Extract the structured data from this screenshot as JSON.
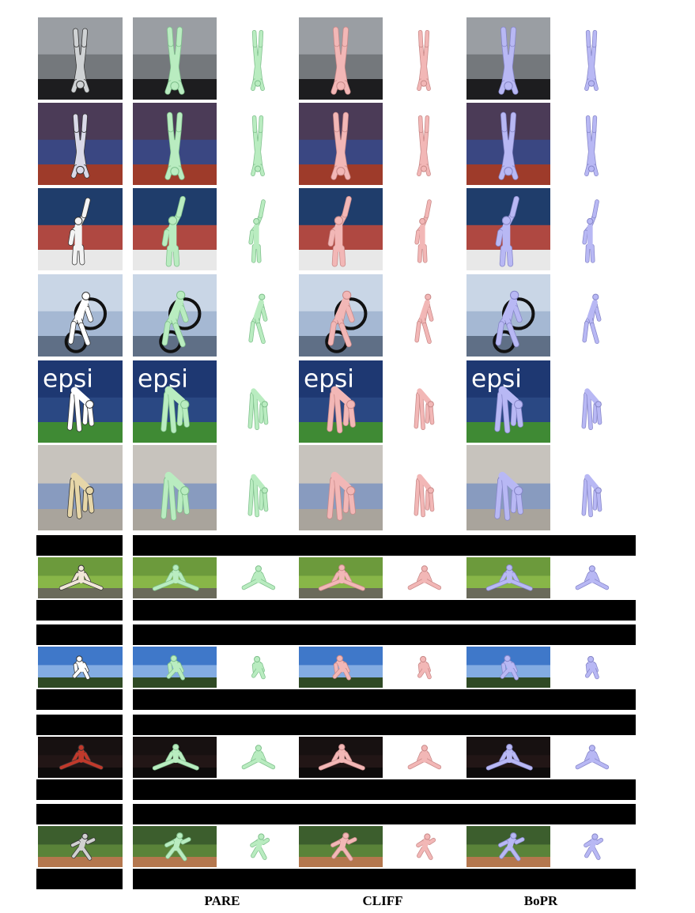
{
  "methods": [
    {
      "name": "PARE",
      "color": "#b9ecc0",
      "stroke": "#7fbf8c"
    },
    {
      "name": "CLIFF",
      "color": "#f2b7b6",
      "stroke": "#c88988"
    },
    {
      "name": "BoPR",
      "color": "#b8b8f4",
      "stroke": "#8686c8"
    }
  ],
  "rows": [
    {
      "scene": "handstand-building",
      "pose": "handstand",
      "letterbox": false
    },
    {
      "scene": "handstand-track",
      "pose": "handstand",
      "letterbox": false
    },
    {
      "scene": "tennis-wave",
      "pose": "wave",
      "letterbox": false
    },
    {
      "scene": "bmx-bike",
      "pose": "crouch",
      "letterbox": false
    },
    {
      "scene": "stadium-bend",
      "pose": "bend",
      "letterbox": false,
      "banner_text": "epsi"
    },
    {
      "scene": "closeup-bend",
      "pose": "bend",
      "letterbox": false
    },
    {
      "scene": "split-grass",
      "pose": "split",
      "letterbox": true
    },
    {
      "scene": "jump-sky",
      "pose": "tuck",
      "letterbox": true
    },
    {
      "scene": "split-chair-dark",
      "pose": "split",
      "letterbox": true
    },
    {
      "scene": "baseball-field",
      "pose": "run",
      "letterbox": true
    }
  ]
}
